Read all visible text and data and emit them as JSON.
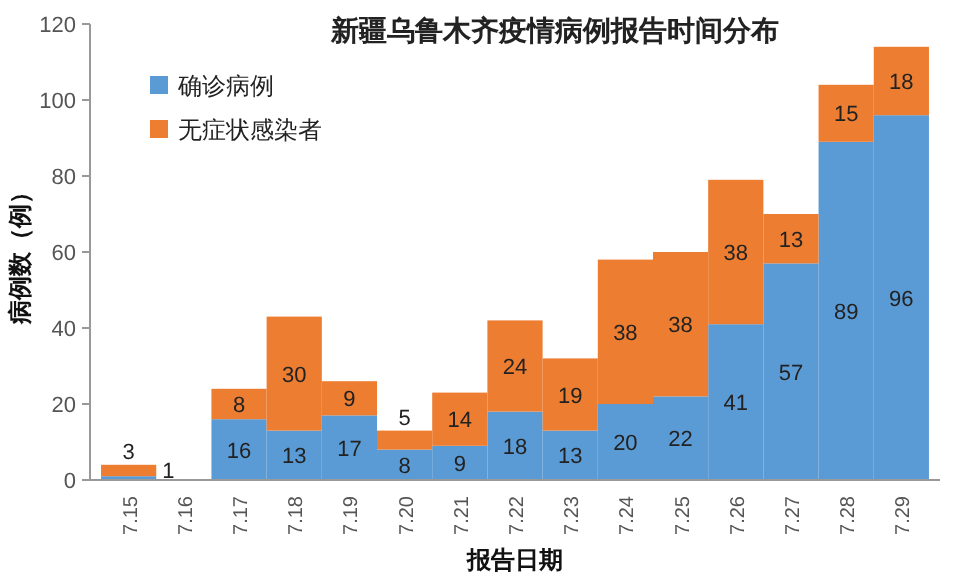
{
  "chart_data": {
    "type": "bar",
    "stacked": true,
    "title": "新疆乌鲁木齐疫情病例报告时间分布",
    "xlabel": "报告日期",
    "ylabel": "病例数（例）",
    "categories": [
      "7.15",
      "7.16",
      "7.17",
      "7.18",
      "7.19",
      "7.20",
      "7.21",
      "7.22",
      "7.23",
      "7.24",
      "7.25",
      "7.26",
      "7.27",
      "7.28",
      "7.29"
    ],
    "series": [
      {
        "name": "确诊病例",
        "color": "#5b9bd5",
        "values": [
          1,
          null,
          16,
          13,
          17,
          8,
          9,
          18,
          13,
          20,
          22,
          41,
          57,
          89,
          96
        ]
      },
      {
        "name": "无症状感染者",
        "color": "#ed7d31",
        "values": [
          3,
          null,
          8,
          30,
          9,
          5,
          14,
          24,
          19,
          38,
          38,
          38,
          13,
          15,
          18
        ]
      }
    ],
    "ylim": [
      0,
      120
    ],
    "yticks": [
      0,
      20,
      40,
      60,
      80,
      100,
      120
    ],
    "data_labels": true,
    "legend": "top left"
  }
}
